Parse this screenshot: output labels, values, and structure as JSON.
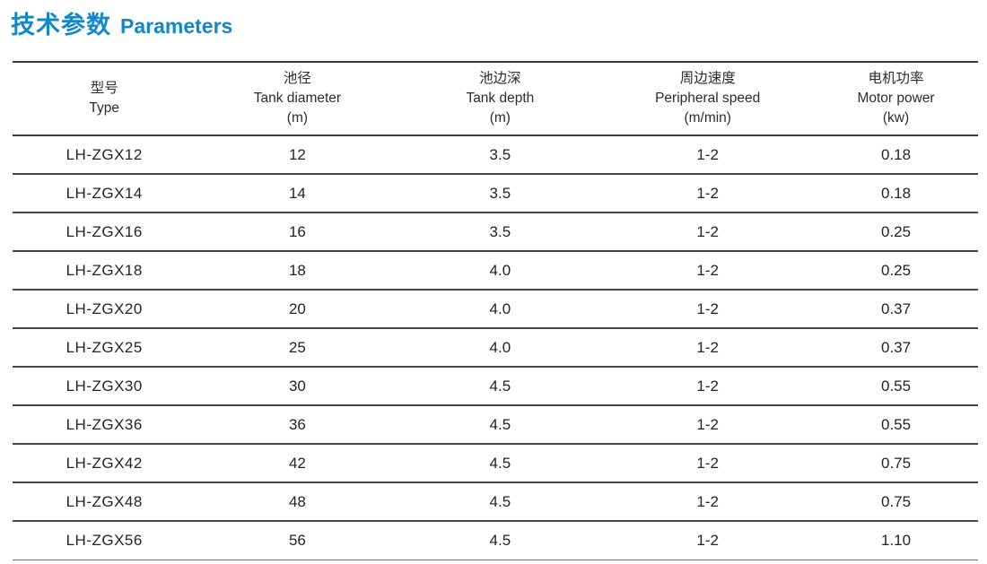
{
  "page_title": {
    "zh": "技术参数",
    "en": "Parameters",
    "accent_color": "#1287cb"
  },
  "table": {
    "columns": [
      {
        "zh": "型号",
        "en": "Type",
        "unit": ""
      },
      {
        "zh": "池径",
        "en": "Tank diameter",
        "unit": "(m)"
      },
      {
        "zh": "池边深",
        "en": "Tank depth",
        "unit": "(m)"
      },
      {
        "zh": "周边速度",
        "en": "Peripheral speed",
        "unit": "(m/min)"
      },
      {
        "zh": "电机功率",
        "en": "Motor power",
        "unit": "(kw)"
      }
    ],
    "rows": [
      [
        "LH-ZGX12",
        "12",
        "3.5",
        "1-2",
        "0.18"
      ],
      [
        "LH-ZGX14",
        "14",
        "3.5",
        "1-2",
        "0.18"
      ],
      [
        "LH-ZGX16",
        "16",
        "3.5",
        "1-2",
        "0.25"
      ],
      [
        "LH-ZGX18",
        "18",
        "4.0",
        "1-2",
        "0.25"
      ],
      [
        "LH-ZGX20",
        "20",
        "4.0",
        "1-2",
        "0.37"
      ],
      [
        "LH-ZGX25",
        "25",
        "4.0",
        "1-2",
        "0.37"
      ],
      [
        "LH-ZGX30",
        "30",
        "4.5",
        "1-2",
        "0.55"
      ],
      [
        "LH-ZGX36",
        "36",
        "4.5",
        "1-2",
        "0.55"
      ],
      [
        "LH-ZGX42",
        "42",
        "4.5",
        "1-2",
        "0.75"
      ],
      [
        "LH-ZGX48",
        "48",
        "4.5",
        "1-2",
        "0.75"
      ],
      [
        "LH-ZGX56",
        "56",
        "4.5",
        "1-2",
        "1.10"
      ]
    ]
  }
}
